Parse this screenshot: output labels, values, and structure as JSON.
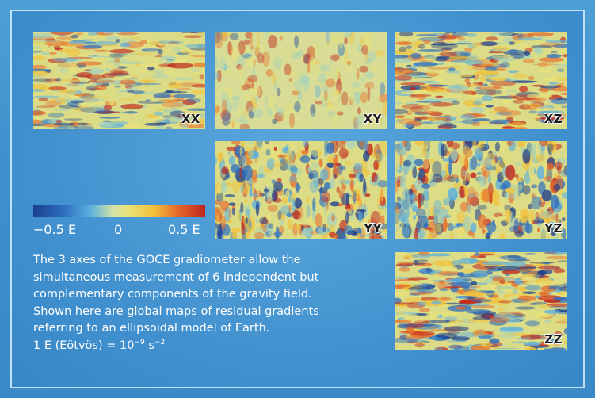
{
  "maps": [
    {
      "id": "xx",
      "label": "XX"
    },
    {
      "id": "xy",
      "label": "XY"
    },
    {
      "id": "xz",
      "label": "XZ"
    },
    {
      "id": "yy",
      "label": "YY"
    },
    {
      "id": "yz",
      "label": "YZ"
    },
    {
      "id": "zz",
      "label": "ZZ"
    }
  ],
  "colorbar": {
    "min_label": "−0.5 E",
    "zero_label": "0",
    "max_label": "0.5 E",
    "colors": [
      "#1c3e8e",
      "#5aaee0",
      "#eae27a",
      "#e56a2a",
      "#c0241e"
    ]
  },
  "caption": {
    "line1": "The 3 axes of the GOCE gradiometer allow the",
    "line2": "simultaneous measurement of 6 independent but",
    "line3": "complementary components of the gravity field.",
    "line4": "Shown here are global maps of residual gradients",
    "line5": "referring to an ellipsoidal model of Earth.",
    "unit_prefix": "1 E (Eötvös) = 10",
    "unit_exp1": "−9",
    "unit_mid": " s",
    "unit_exp2": "−2"
  }
}
